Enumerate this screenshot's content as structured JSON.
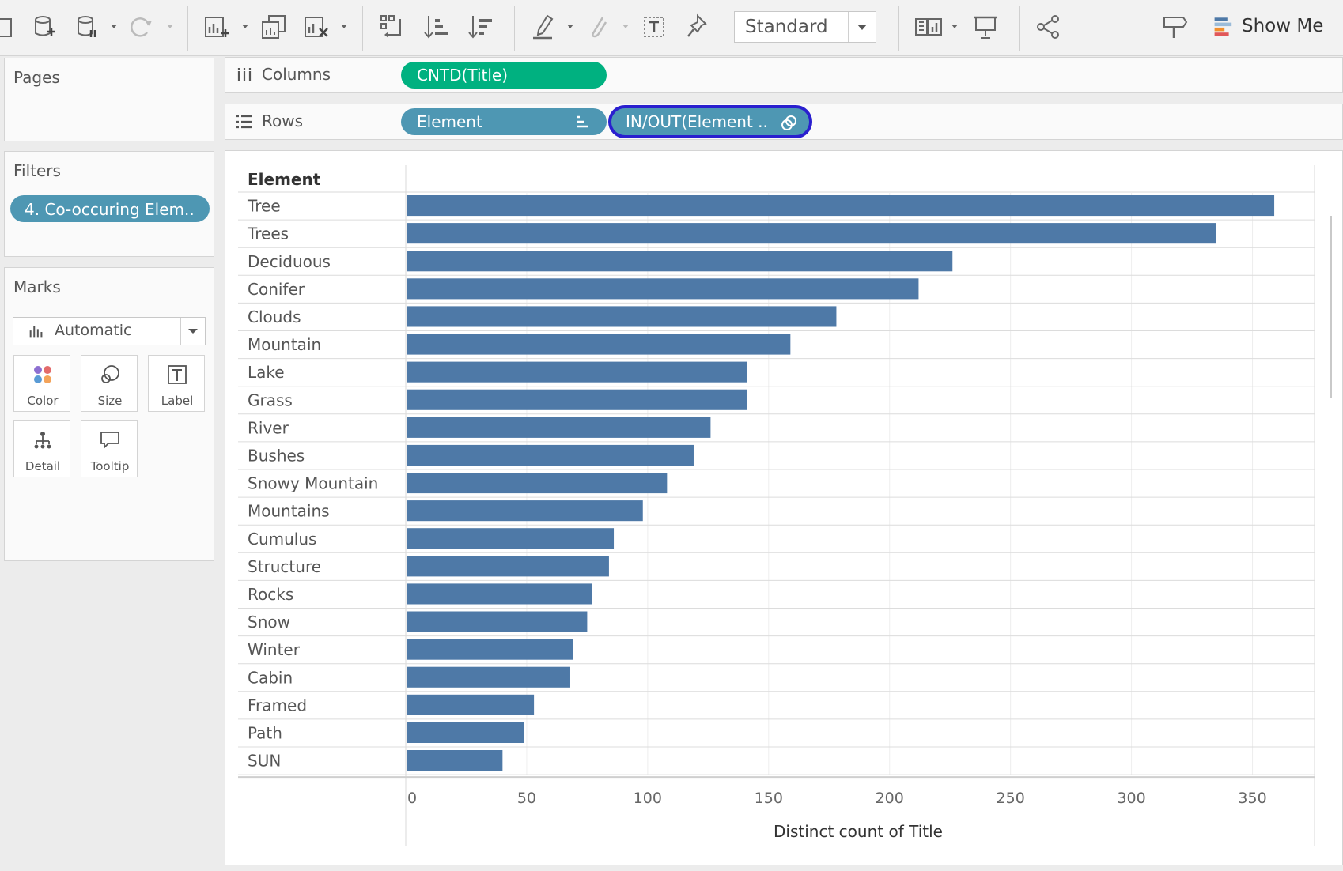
{
  "toolbar": {
    "view_mode": "Standard",
    "show_me_label": "Show Me"
  },
  "panels": {
    "pages_title": "Pages",
    "filters_title": "Filters",
    "filter_pill": "4. Co-occuring Elem..",
    "marks_title": "Marks",
    "marks_type": "Automatic",
    "marks_buttons": [
      "Color",
      "Size",
      "Label",
      "Detail",
      "Tooltip"
    ]
  },
  "shelves": {
    "columns_label": "Columns",
    "columns_pill": "CNTD(Title)",
    "rows_label": "Rows",
    "rows_pill_1": "Element",
    "rows_pill_2": "IN/OUT(Element .."
  },
  "colors": {
    "bar": "#4e79a7",
    "measure_pill": "#00b180",
    "dimension_pill": "#4e97b3",
    "highlight_border": "#2a1fcf"
  },
  "chart_data": {
    "type": "bar",
    "orientation": "horizontal",
    "row_header": "Element",
    "xlabel": "Distinct count of Title",
    "categories": [
      "Tree",
      "Trees",
      "Deciduous",
      "Conifer",
      "Clouds",
      "Mountain",
      "Lake",
      "Grass",
      "River",
      "Bushes",
      "Snowy Mountain",
      "Mountains",
      "Cumulus",
      "Structure",
      "Rocks",
      "Snow",
      "Winter",
      "Cabin",
      "Framed",
      "Path",
      "SUN"
    ],
    "values": [
      359,
      335,
      226,
      212,
      178,
      159,
      141,
      141,
      126,
      119,
      108,
      98,
      86,
      84,
      77,
      75,
      69,
      68,
      53,
      49,
      40
    ],
    "xticks": [
      0,
      50,
      100,
      150,
      200,
      250,
      300,
      350
    ],
    "xlim": [
      0,
      375
    ]
  }
}
